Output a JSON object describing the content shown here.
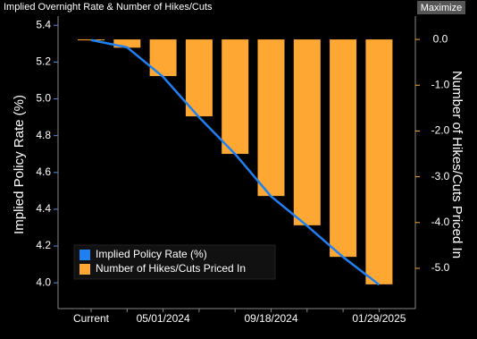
{
  "header": {
    "title": "Implied Overnight Rate & Number of Hikes/Cuts",
    "button": "Maximize"
  },
  "chart_data": {
    "type": "bar-line",
    "ylabel": "Implied Policy Rate (%)",
    "y2label": "Number of Hikes/Cuts Priced In",
    "categories": [
      "Current",
      null,
      "05/01/2024",
      null,
      null,
      "09/18/2024",
      null,
      null,
      "01/29/2025"
    ],
    "series": [
      {
        "name": "Implied Policy Rate (%)",
        "type": "line",
        "axis": "y",
        "color": "#1f80f2",
        "values": [
          5.32,
          5.28,
          5.12,
          4.9,
          4.7,
          4.47,
          4.31,
          4.14,
          3.99
        ]
      },
      {
        "name": "Number of Hikes/Cuts Priced In",
        "type": "bar",
        "axis": "y2",
        "color": "#ffa733",
        "values": [
          -0.02,
          -0.18,
          -0.8,
          -1.68,
          -2.5,
          -3.42,
          -4.06,
          -4.75,
          -5.35
        ]
      }
    ],
    "ylim": [
      3.86,
      5.45
    ],
    "yticks": [
      {
        "value": 4.0,
        "label": "4.0"
      },
      4.2,
      4.4,
      4.6,
      4.8,
      {
        "value": 5.0,
        "label": "5.0"
      },
      5.2,
      5.4
    ],
    "y2lim": [
      -5.88,
      0.51
    ],
    "y2ticks": [
      {
        "value": -5,
        "label": "-5.0"
      },
      {
        "value": -4,
        "label": "-4.0"
      },
      {
        "value": -3,
        "label": "-3.0"
      },
      {
        "value": -2,
        "label": "-2.0"
      },
      {
        "value": -1,
        "label": "-1.0"
      },
      {
        "value": 0,
        "label": "0.0"
      }
    ],
    "legend": "lower left"
  }
}
